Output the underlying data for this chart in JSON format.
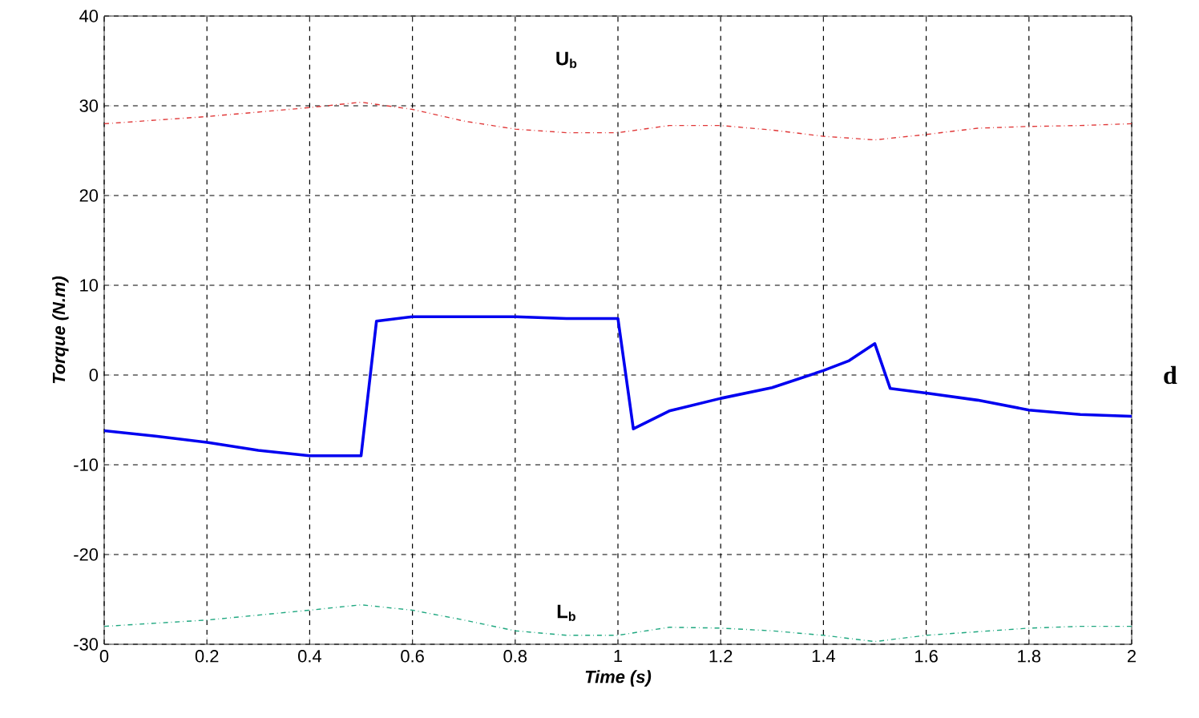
{
  "chart_data": {
    "type": "line",
    "xlabel": "Time (s)",
    "ylabel": "Torque (N.m)",
    "xlim": [
      0,
      2
    ],
    "ylim": [
      -30,
      40
    ],
    "xticks": [
      0,
      0.2,
      0.4,
      0.6,
      0.8,
      1,
      1.2,
      1.4,
      1.6,
      1.8,
      2
    ],
    "yticks": [
      -30,
      -20,
      -10,
      0,
      10,
      20,
      30,
      40
    ],
    "grid": true,
    "series": [
      {
        "color": "#e03838",
        "line_style": "dashed",
        "x": [
          0,
          0.2,
          0.4,
          0.5,
          0.6,
          0.7,
          0.8,
          0.9,
          1.0,
          1.1,
          1.2,
          1.3,
          1.4,
          1.5,
          1.6,
          1.7,
          1.8,
          1.9,
          2.0
        ],
        "values": [
          28,
          28.8,
          29.8,
          30.4,
          29.6,
          28.3,
          27.4,
          27.0,
          27.0,
          27.8,
          27.8,
          27.3,
          26.6,
          26.2,
          26.8,
          27.5,
          27.7,
          27.8,
          28
        ]
      },
      {
        "color": "#0000f0",
        "line_style": "solid",
        "x": [
          0,
          0.1,
          0.2,
          0.3,
          0.4,
          0.5,
          0.53,
          0.6,
          0.8,
          0.9,
          1.0,
          1.03,
          1.1,
          1.2,
          1.3,
          1.4,
          1.45,
          1.5,
          1.53,
          1.6,
          1.7,
          1.8,
          1.9,
          2.0
        ],
        "values": [
          -6.2,
          -6.8,
          -7.5,
          -8.4,
          -9,
          -9,
          6,
          6.5,
          6.5,
          6.3,
          6.3,
          -6,
          -4,
          -2.6,
          -1.4,
          0.5,
          1.6,
          3.5,
          -1.5,
          -2,
          -2.8,
          -3.9,
          -4.4,
          -4.6
        ]
      },
      {
        "color": "#20a880",
        "line_style": "dashed",
        "x": [
          0,
          0.2,
          0.4,
          0.5,
          0.6,
          0.7,
          0.8,
          0.9,
          1.0,
          1.1,
          1.2,
          1.3,
          1.4,
          1.5,
          1.6,
          1.7,
          1.8,
          1.9,
          2.0
        ],
        "values": [
          -28,
          -27.3,
          -26.2,
          -25.6,
          -26.2,
          -27.3,
          -28.5,
          -29,
          -29,
          -28.1,
          -28.2,
          -28.5,
          -29,
          -29.7,
          -29,
          -28.6,
          -28.2,
          -28,
          -28
        ]
      }
    ],
    "annotations": [
      "U$_{b}$",
      "L$_{b}$",
      "d"
    ]
  }
}
